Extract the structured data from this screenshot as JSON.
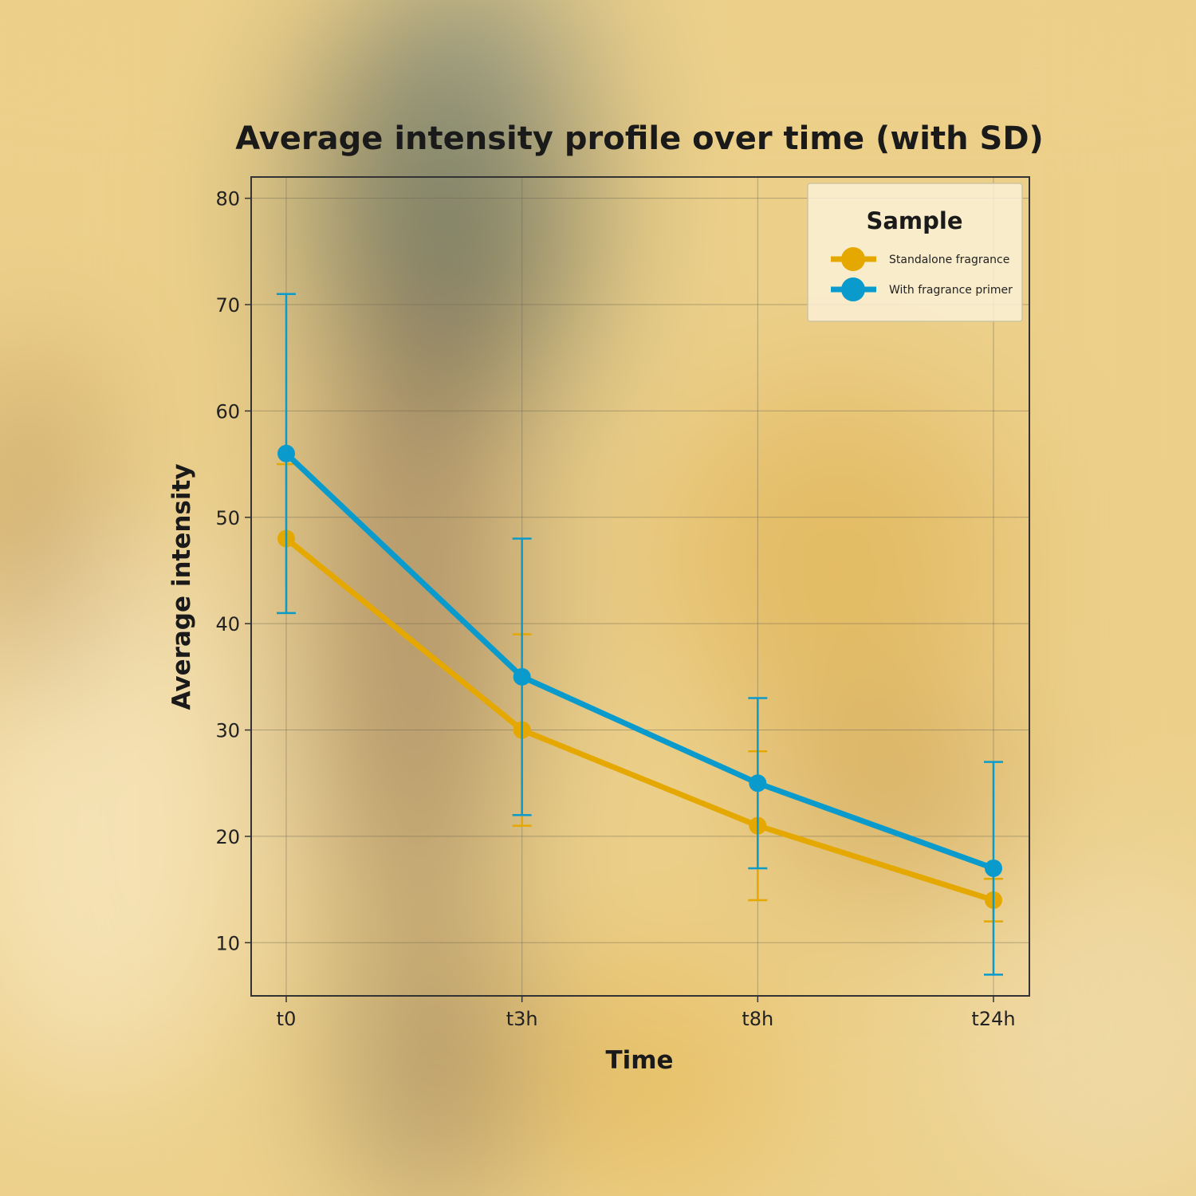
{
  "chart_data": {
    "type": "line",
    "title": "Average intensity profile over time (with SD)",
    "xlabel": "Time",
    "ylabel": "Average intensity",
    "categories": [
      "t0",
      "t3h",
      "t8h",
      "t24h"
    ],
    "ylim": [
      5,
      82
    ],
    "yticks": [
      10,
      20,
      30,
      40,
      50,
      60,
      70,
      80
    ],
    "grid": true,
    "legend": {
      "title": "Sample",
      "placement": "top-right"
    },
    "series": [
      {
        "name": "Standalone fragrance",
        "color": "#e5a800",
        "values": [
          48,
          30,
          21,
          14
        ],
        "sd": [
          7,
          9,
          7,
          2
        ]
      },
      {
        "name": "With fragrance primer",
        "color": "#0a9bcc",
        "values": [
          56,
          35,
          25,
          17
        ],
        "sd": [
          15,
          13,
          8,
          10
        ]
      }
    ]
  }
}
